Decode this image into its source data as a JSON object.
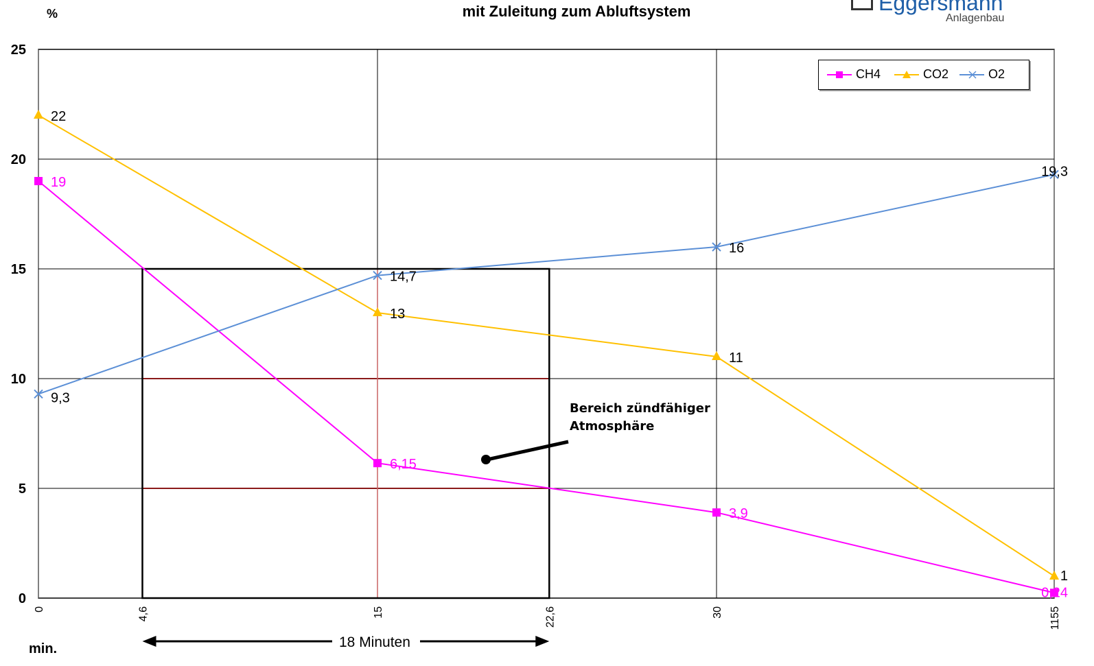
{
  "chart_data": {
    "type": "line",
    "title": "mit Zuleitung zum Abluftsystem",
    "ylabel": "%",
    "xlabel": "min.",
    "ylim": [
      0,
      25
    ],
    "yticks": [
      "0",
      "5",
      "10",
      "15",
      "20",
      "25"
    ],
    "categories": [
      "0",
      "15",
      "30",
      "1155"
    ],
    "extra_xticks": [
      "4,6",
      "22,6"
    ],
    "series": [
      {
        "name": "CH4",
        "color": "#ff00ff",
        "values": [
          19,
          6.15,
          3.9,
          0.24
        ],
        "labels": [
          "19",
          "6,15",
          "3,9",
          "0,24"
        ]
      },
      {
        "name": "CO2",
        "color": "#ffc000",
        "values": [
          22,
          13,
          11,
          1
        ],
        "labels": [
          "22",
          "13",
          "11",
          "1"
        ]
      },
      {
        "name": "O2",
        "color": "#5b8fd6",
        "values": [
          9.3,
          14.7,
          16,
          19.3
        ],
        "labels": [
          "9,3",
          "14,7",
          "16",
          "19,3"
        ]
      }
    ],
    "grid": true,
    "legend": "top-right",
    "annotation": {
      "line1": "Bereich zündfähiger",
      "line2": "Atmosphäre"
    },
    "span_label": "18 Minuten"
  },
  "logo": {
    "brand": "Eggersmann",
    "sub": "Anlagenbau"
  }
}
